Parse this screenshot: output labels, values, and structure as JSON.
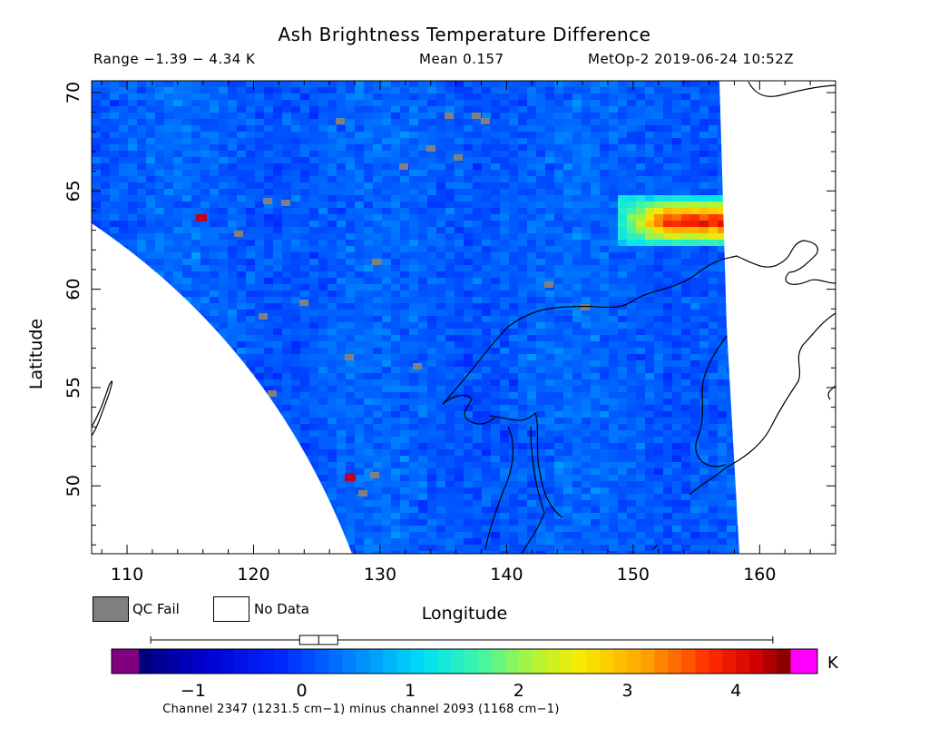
{
  "title": "Ash Brightness Temperature Difference",
  "info": {
    "range": "Range −1.39 − 4.34 K",
    "mean": "Mean 0.157",
    "satellite_time": "MetOp-2 2019-06-24 10:52Z"
  },
  "legend": {
    "qc_fail_label": "QC Fail",
    "no_data_label": "No Data",
    "qc_fail_color": "#808080",
    "no_data_color": "#ffffff"
  },
  "colorbar": {
    "unit": "K",
    "ticks": [
      "−1",
      "0",
      "1",
      "2",
      "3",
      "4"
    ],
    "tick_values": [
      -1,
      0,
      1,
      2,
      3,
      4
    ],
    "min": -1.5,
    "max": 4.5,
    "under_color": "#800080",
    "over_color": "#ff00ff",
    "caption": "Channel 2347 (1231.5 cm−1) minus channel 2093 (1168 cm−1)",
    "data_range": [
      -1.39,
      4.34
    ],
    "mean": 0.157
  },
  "chart_data": {
    "type": "heatmap",
    "title": "Ash Brightness Temperature Difference",
    "xlabel": "Longitude",
    "ylabel": "Latitude",
    "xlim": [
      108,
      166
    ],
    "ylim": [
      46.5,
      70.5
    ],
    "x_ticks": [
      "110",
      "120",
      "130",
      "140",
      "150",
      "160"
    ],
    "x_tick_values": [
      110,
      120,
      130,
      140,
      150,
      160
    ],
    "y_ticks": [
      "70",
      "65",
      "60",
      "55",
      "50"
    ],
    "y_tick_values": [
      70,
      65,
      60,
      55,
      50
    ],
    "background_value_K": 0.2,
    "hotspot": {
      "lon_range": [
        148.5,
        157
      ],
      "lat_range": [
        62.5,
        64.8
      ],
      "max_K": 4.34
    },
    "swath_edge_east_lon": [
      157,
      158.5
    ],
    "qc_fail_present": true
  }
}
